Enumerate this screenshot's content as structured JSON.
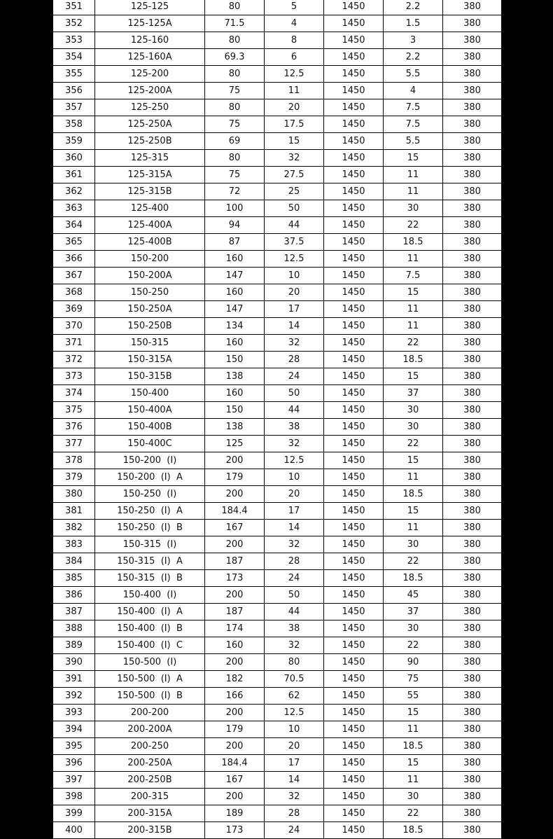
{
  "rows": [
    [
      "351",
      "125-125",
      "80",
      "5",
      "1450",
      "2.2",
      "380"
    ],
    [
      "352",
      "125-125A",
      "71.5",
      "4",
      "1450",
      "1.5",
      "380"
    ],
    [
      "353",
      "125-160",
      "80",
      "8",
      "1450",
      "3",
      "380"
    ],
    [
      "354",
      "125-160A",
      "69.3",
      "6",
      "1450",
      "2.2",
      "380"
    ],
    [
      "355",
      "125-200",
      "80",
      "12.5",
      "1450",
      "5.5",
      "380"
    ],
    [
      "356",
      "125-200A",
      "75",
      "11",
      "1450",
      "4",
      "380"
    ],
    [
      "357",
      "125-250",
      "80",
      "20",
      "1450",
      "7.5",
      "380"
    ],
    [
      "358",
      "125-250A",
      "75",
      "17.5",
      "1450",
      "7.5",
      "380"
    ],
    [
      "359",
      "125-250B",
      "69",
      "15",
      "1450",
      "5.5",
      "380"
    ],
    [
      "360",
      "125-315",
      "80",
      "32",
      "1450",
      "15",
      "380"
    ],
    [
      "361",
      "125-315A",
      "75",
      "27.5",
      "1450",
      "11",
      "380"
    ],
    [
      "362",
      "125-315B",
      "72",
      "25",
      "1450",
      "11",
      "380"
    ],
    [
      "363",
      "125-400",
      "100",
      "50",
      "1450",
      "30",
      "380"
    ],
    [
      "364",
      "125-400A",
      "94",
      "44",
      "1450",
      "22",
      "380"
    ],
    [
      "365",
      "125-400B",
      "87",
      "37.5",
      "1450",
      "18.5",
      "380"
    ],
    [
      "366",
      "150-200",
      "160",
      "12.5",
      "1450",
      "11",
      "380"
    ],
    [
      "367",
      "150-200A",
      "147",
      "10",
      "1450",
      "7.5",
      "380"
    ],
    [
      "368",
      "150-250",
      "160",
      "20",
      "1450",
      "15",
      "380"
    ],
    [
      "369",
      "150-250A",
      "147",
      "17",
      "1450",
      "11",
      "380"
    ],
    [
      "370",
      "150-250B",
      "134",
      "14",
      "1450",
      "11",
      "380"
    ],
    [
      "371",
      "150-315",
      "160",
      "32",
      "1450",
      "22",
      "380"
    ],
    [
      "372",
      "150-315A",
      "150",
      "28",
      "1450",
      "18.5",
      "380"
    ],
    [
      "373",
      "150-315B",
      "138",
      "24",
      "1450",
      "15",
      "380"
    ],
    [
      "374",
      "150-400",
      "160",
      "50",
      "1450",
      "37",
      "380"
    ],
    [
      "375",
      "150-400A",
      "150",
      "44",
      "1450",
      "30",
      "380"
    ],
    [
      "376",
      "150-400B",
      "138",
      "38",
      "1450",
      "30",
      "380"
    ],
    [
      "377",
      "150-400C",
      "125",
      "32",
      "1450",
      "22",
      "380"
    ],
    [
      "378",
      "150-200  (I)",
      "200",
      "12.5",
      "1450",
      "15",
      "380"
    ],
    [
      "379",
      "150-200  (I)  A",
      "179",
      "10",
      "1450",
      "11",
      "380"
    ],
    [
      "380",
      "150-250  (I)",
      "200",
      "20",
      "1450",
      "18.5",
      "380"
    ],
    [
      "381",
      "150-250  (I)  A",
      "184.4",
      "17",
      "1450",
      "15",
      "380"
    ],
    [
      "382",
      "150-250  (I)  B",
      "167",
      "14",
      "1450",
      "11",
      "380"
    ],
    [
      "383",
      "150-315  (I)",
      "200",
      "32",
      "1450",
      "30",
      "380"
    ],
    [
      "384",
      "150-315  (I)  A",
      "187",
      "28",
      "1450",
      "22",
      "380"
    ],
    [
      "385",
      "150-315  (I)  B",
      "173",
      "24",
      "1450",
      "18.5",
      "380"
    ],
    [
      "386",
      "150-400  (I)",
      "200",
      "50",
      "1450",
      "45",
      "380"
    ],
    [
      "387",
      "150-400  (I)  A",
      "187",
      "44",
      "1450",
      "37",
      "380"
    ],
    [
      "388",
      "150-400  (I)  B",
      "174",
      "38",
      "1450",
      "30",
      "380"
    ],
    [
      "389",
      "150-400  (I)  C",
      "160",
      "32",
      "1450",
      "22",
      "380"
    ],
    [
      "390",
      "150-500  (I)",
      "200",
      "80",
      "1450",
      "90",
      "380"
    ],
    [
      "391",
      "150-500  (I)  A",
      "182",
      "70.5",
      "1450",
      "75",
      "380"
    ],
    [
      "392",
      "150-500  (I)  B",
      "166",
      "62",
      "1450",
      "55",
      "380"
    ],
    [
      "393",
      "200-200",
      "200",
      "12.5",
      "1450",
      "15",
      "380"
    ],
    [
      "394",
      "200-200A",
      "179",
      "10",
      "1450",
      "11",
      "380"
    ],
    [
      "395",
      "200-250",
      "200",
      "20",
      "1450",
      "18.5",
      "380"
    ],
    [
      "396",
      "200-250A",
      "184.4",
      "17",
      "1450",
      "15",
      "380"
    ],
    [
      "397",
      "200-250B",
      "167",
      "14",
      "1450",
      "11",
      "380"
    ],
    [
      "398",
      "200-315",
      "200",
      "32",
      "1450",
      "30",
      "380"
    ],
    [
      "399",
      "200-315A",
      "189",
      "28",
      "1450",
      "22",
      "380"
    ],
    [
      "400",
      "200-315B",
      "173",
      "24",
      "1450",
      "18.5",
      "380"
    ]
  ]
}
